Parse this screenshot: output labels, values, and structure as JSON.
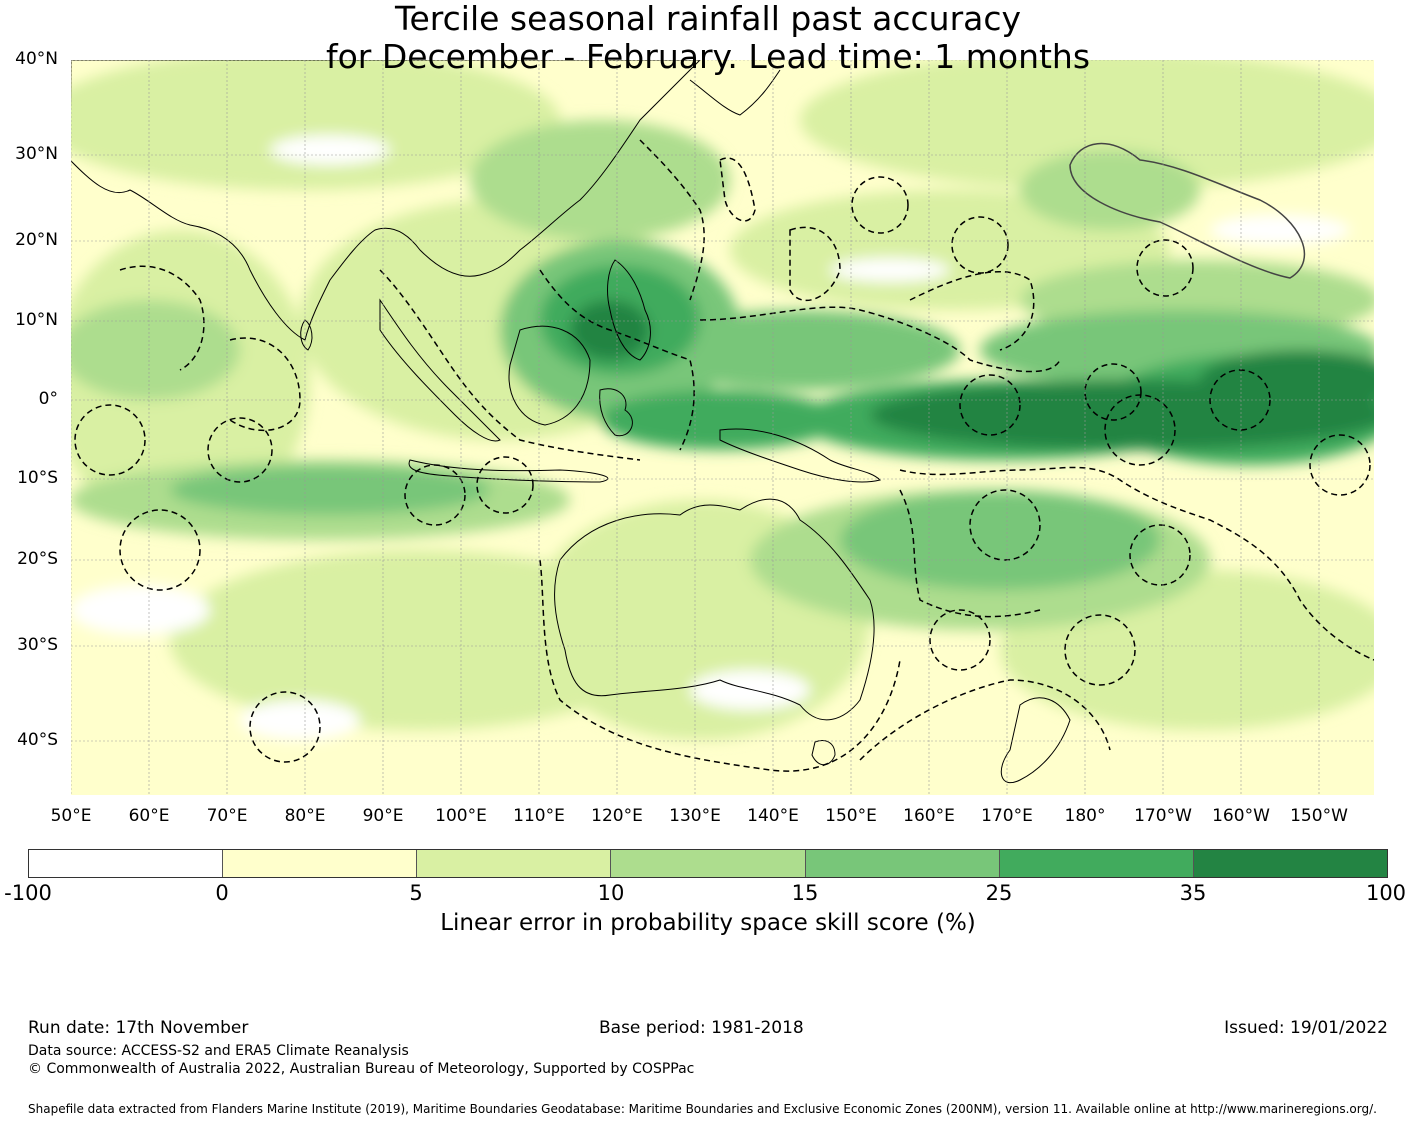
{
  "title": {
    "line1": "Tercile seasonal rainfall past accuracy",
    "line2": "for December - February. Lead time: 1 months"
  },
  "axes": {
    "lat_labels": [
      "40°N",
      "30°N",
      "20°N",
      "10°N",
      "0°",
      "10°S",
      "20°S",
      "30°S",
      "40°S"
    ],
    "lon_labels": [
      "50°E",
      "60°E",
      "70°E",
      "80°E",
      "90°E",
      "100°E",
      "110°E",
      "120°E",
      "130°E",
      "140°E",
      "150°E",
      "160°E",
      "170°E",
      "180°",
      "170°W",
      "160°W",
      "150°W"
    ]
  },
  "colorbar": {
    "colors": [
      "#ffffff",
      "#ffffcc",
      "#d9f0a3",
      "#addd8e",
      "#78c679",
      "#41ab5d",
      "#238443"
    ],
    "ticks": [
      "-100",
      "0",
      "5",
      "10",
      "15",
      "25",
      "35",
      "100"
    ],
    "label": "Linear error in probability space skill score (%)"
  },
  "footer": {
    "run_date": "Run date: 17th November",
    "base_period": "Base period: 1981-2018",
    "issued": "Issued: 19/01/2022",
    "data_source": "Data source: ACCESS-S2 and ERA5 Climate Reanalysis",
    "copyright": "© Commonwealth of Australia 2022, Australian Bureau of Meteorology, Supported by COSPPac",
    "shapefile": "Shapefile data extracted from Flanders Marine Institute (2019), Maritime Boundaries Geodatabase: Maritime Boundaries and Exclusive Economic Zones (200NM), version 11. Available online at http://www.marineregions.org/."
  }
}
